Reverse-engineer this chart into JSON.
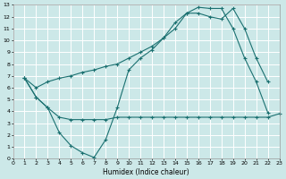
{
  "xlabel": "Humidex (Indice chaleur)",
  "bg_color": "#cce8e8",
  "grid_color": "#ffffff",
  "line_color": "#1a7070",
  "xlim": [
    0,
    23
  ],
  "ylim": [
    0,
    13
  ],
  "xticks": [
    0,
    1,
    2,
    3,
    4,
    5,
    6,
    7,
    8,
    9,
    10,
    11,
    12,
    13,
    14,
    15,
    16,
    17,
    18,
    19,
    20,
    21,
    22,
    23
  ],
  "yticks": [
    0,
    1,
    2,
    3,
    4,
    5,
    6,
    7,
    8,
    9,
    10,
    11,
    12,
    13
  ],
  "line_flat_x": [
    1,
    2,
    3,
    4,
    5,
    6,
    7,
    8,
    9,
    10,
    11,
    12,
    13,
    14,
    15,
    16,
    17,
    18,
    19,
    20,
    21,
    22,
    23
  ],
  "line_flat_y": [
    6.8,
    5.2,
    4.3,
    3.5,
    3.3,
    3.3,
    3.3,
    3.3,
    3.5,
    3.5,
    3.5,
    3.5,
    3.5,
    3.5,
    3.5,
    3.5,
    3.5,
    3.5,
    3.5,
    3.5,
    3.5,
    3.5,
    3.8
  ],
  "line_dip_x": [
    1,
    2,
    3,
    4,
    5,
    6,
    7,
    8,
    9,
    10,
    11,
    12,
    13,
    14,
    15,
    16,
    17,
    18,
    19,
    20,
    21,
    22
  ],
  "line_dip_y": [
    6.8,
    5.2,
    4.3,
    2.2,
    1.1,
    0.5,
    0.1,
    1.6,
    4.3,
    7.5,
    8.5,
    9.2,
    10.2,
    11.5,
    12.3,
    12.8,
    12.7,
    12.7,
    11.0,
    8.5,
    6.5,
    3.9
  ],
  "line_rise_x": [
    1,
    2,
    3,
    4,
    5,
    6,
    7,
    8,
    9,
    10,
    11,
    12,
    13,
    14,
    15,
    16,
    17,
    18,
    19,
    20,
    21,
    22
  ],
  "line_rise_y": [
    6.8,
    6.0,
    6.5,
    6.8,
    7.0,
    7.3,
    7.5,
    7.8,
    8.0,
    8.5,
    9.0,
    9.5,
    10.2,
    11.0,
    12.3,
    12.3,
    12.0,
    11.8,
    12.7,
    11.0,
    8.5,
    6.5
  ]
}
